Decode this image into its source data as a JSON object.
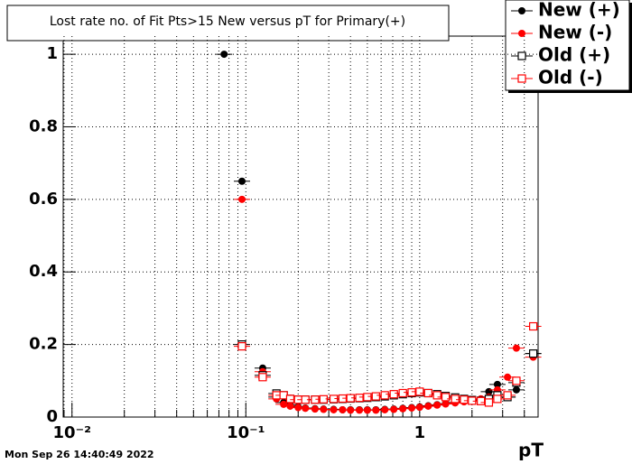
{
  "chart_data": {
    "type": "scatter",
    "title": "Lost rate no. of Fit Pts>15 New versus pT for Primary(+)",
    "x_label": "pT",
    "timestamp": "Mon Sep 26 14:40:49 2022",
    "log_x": true,
    "grid": true,
    "legend": "top-right",
    "xlim": [
      0.0089,
      4.8
    ],
    "xticks": [
      {
        "value": 0.01,
        "label": "10⁻²"
      },
      {
        "value": 0.1,
        "label": "10⁻¹"
      },
      1
    ],
    "ylim": [
      0,
      1.05
    ],
    "yticks": [
      0,
      0.2,
      0.4,
      0.6,
      0.8,
      1
    ],
    "x": [
      0.075,
      0.095,
      0.125,
      0.15,
      0.165,
      0.18,
      0.2,
      0.22,
      0.25,
      0.28,
      0.32,
      0.36,
      0.4,
      0.45,
      0.5,
      0.56,
      0.63,
      0.71,
      0.8,
      0.9,
      1.0,
      1.12,
      1.26,
      1.41,
      1.6,
      1.8,
      2.0,
      2.25,
      2.5,
      2.8,
      3.2,
      3.6,
      4.5
    ],
    "series": [
      {
        "name": "New (+)",
        "color": "#000000",
        "marker": "circle",
        "values": [
          1.0,
          0.65,
          0.135,
          0.055,
          0.04,
          0.033,
          0.028,
          0.025,
          0.023,
          0.022,
          0.021,
          0.02,
          0.02,
          0.02,
          0.02,
          0.02,
          0.021,
          0.022,
          0.024,
          0.026,
          0.028,
          0.031,
          0.034,
          0.037,
          0.04,
          0.043,
          0.045,
          0.05,
          0.07,
          0.09,
          0.055,
          0.075,
          0.175
        ]
      },
      {
        "name": "New (-)",
        "color": "#ff0000",
        "marker": "circle",
        "values": [
          null,
          0.6,
          0.125,
          0.05,
          0.035,
          0.03,
          0.026,
          0.024,
          0.022,
          0.021,
          0.02,
          0.02,
          0.019,
          0.019,
          0.019,
          0.019,
          0.02,
          0.021,
          0.023,
          0.025,
          0.027,
          0.03,
          0.033,
          0.036,
          0.039,
          0.042,
          0.045,
          0.05,
          0.055,
          0.075,
          0.11,
          0.19,
          0.165
        ]
      },
      {
        "name": "Old (+)",
        "color": "#000000",
        "marker": "square",
        "values": [
          null,
          0.2,
          0.115,
          0.065,
          0.06,
          0.05,
          0.048,
          0.048,
          0.048,
          0.048,
          0.049,
          0.05,
          0.051,
          0.052,
          0.053,
          0.055,
          0.057,
          0.06,
          0.063,
          0.066,
          0.068,
          0.066,
          0.063,
          0.058,
          0.054,
          0.05,
          0.047,
          0.045,
          0.05,
          0.06,
          0.055,
          0.095,
          0.175
        ]
      },
      {
        "name": "Old (-)",
        "color": "#ff0000",
        "marker": "square",
        "values": [
          null,
          0.195,
          0.11,
          0.06,
          0.06,
          0.05,
          0.048,
          0.048,
          0.048,
          0.049,
          0.05,
          0.051,
          0.052,
          0.053,
          0.055,
          0.057,
          0.06,
          0.063,
          0.066,
          0.068,
          0.07,
          0.066,
          0.06,
          0.055,
          0.05,
          0.048,
          0.045,
          0.044,
          0.04,
          0.05,
          0.06,
          0.1,
          0.25
        ]
      }
    ]
  }
}
